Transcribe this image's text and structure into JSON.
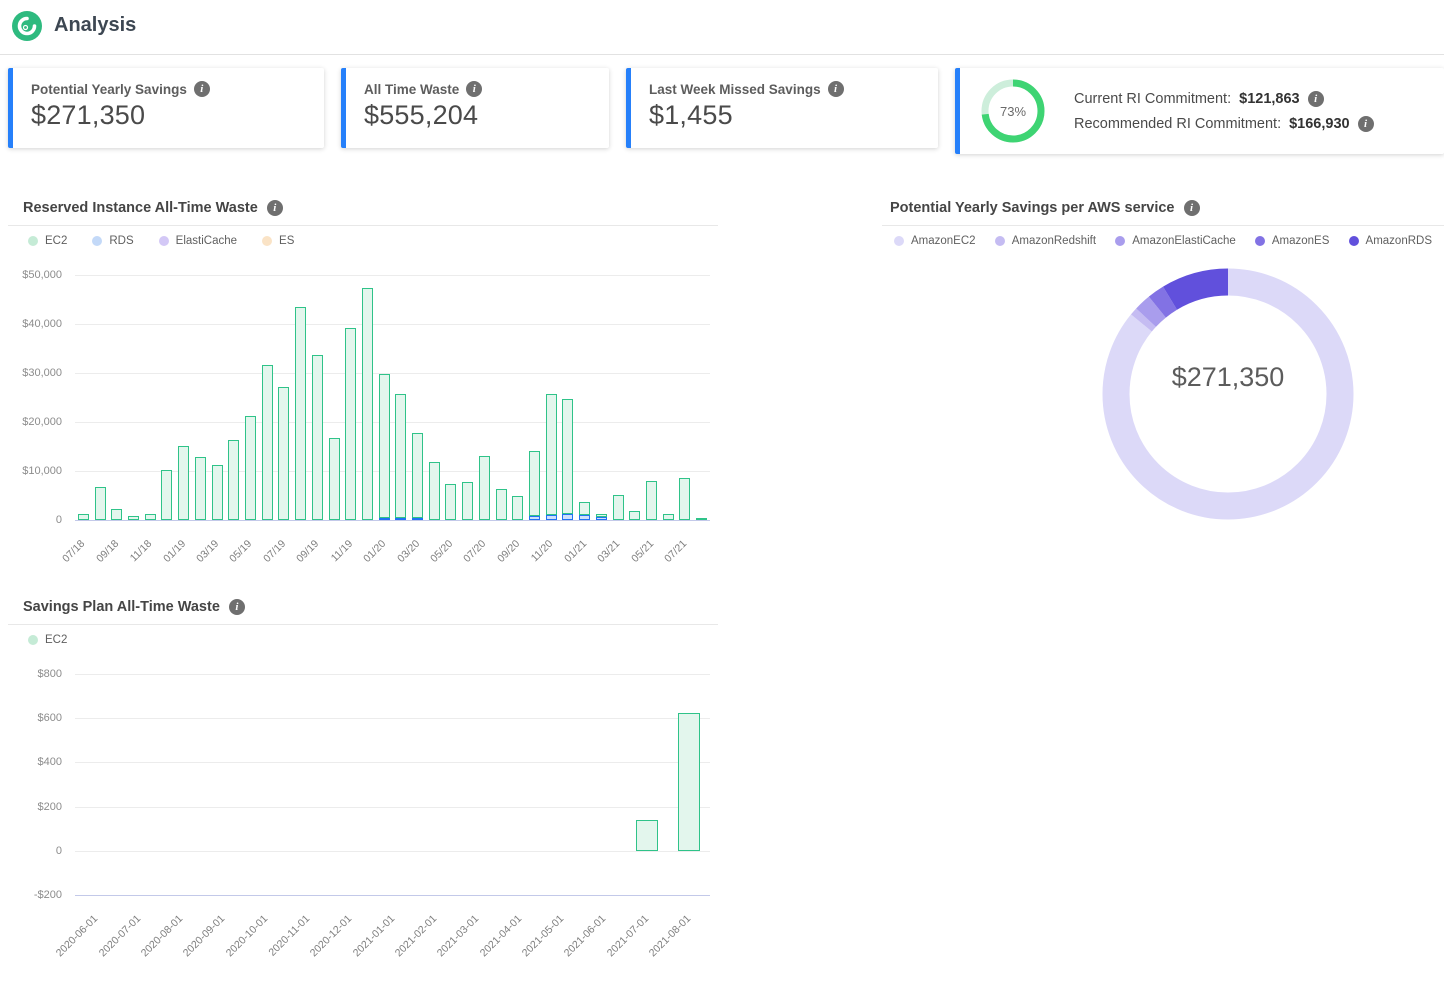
{
  "icons": {
    "info": "i"
  },
  "colors": {
    "accent_blue": "#2680fa",
    "ring_green": "#3ed473",
    "ring_track": "#cdeedb",
    "bar_green_border": "#2fc389",
    "bar_green_fill": "#e3f6ed",
    "bar_blue_border": "#2173f2",
    "bar_blue_fill": "#cfe0fb"
  },
  "header": {
    "title": "Analysis"
  },
  "cards": [
    {
      "label": "Potential Yearly Savings",
      "value": "$271,350"
    },
    {
      "label": "All Time Waste",
      "value": "$555,204"
    },
    {
      "label": "Last Week Missed Savings",
      "value": "$1,455"
    },
    {
      "percent": "73%",
      "percent_value": 73,
      "rows": [
        {
          "label": "Current RI Commitment:",
          "value": "$121,863"
        },
        {
          "label": "Recommended RI Commitment:",
          "value": "$166,930"
        }
      ]
    }
  ],
  "panels": {
    "ri": {
      "title": "Reserved Instance All-Time Waste"
    },
    "donut": {
      "title": "Potential Yearly Savings per AWS service"
    },
    "sp": {
      "title": "Savings Plan All-Time Waste"
    }
  },
  "chart_data": [
    {
      "type": "bar",
      "id": "ri",
      "title": "Reserved Instance All-Time Waste",
      "stacked": true,
      "ymax": 50000,
      "ymin": 0,
      "y_tick_labels": [
        "$50,000",
        "$40,000",
        "$30,000",
        "$20,000",
        "$10,000",
        "0"
      ],
      "y_tick_values": [
        50000,
        40000,
        30000,
        20000,
        10000,
        0
      ],
      "label_every": 2,
      "categories": [
        "07/18",
        "08/18",
        "09/18",
        "10/18",
        "11/18",
        "12/18",
        "01/19",
        "02/19",
        "03/19",
        "04/19",
        "05/19",
        "06/19",
        "07/19",
        "08/19",
        "09/19",
        "10/19",
        "11/19",
        "12/19",
        "01/20",
        "02/20",
        "03/20",
        "04/20",
        "05/20",
        "06/20",
        "07/20",
        "08/20",
        "09/20",
        "10/20",
        "11/20",
        "12/20",
        "01/21",
        "02/21",
        "03/21",
        "04/21",
        "05/21",
        "06/21",
        "07/21",
        "08/21"
      ],
      "legend": [
        {
          "label": "EC2",
          "color": "#c5ebd6"
        },
        {
          "label": "RDS",
          "color": "#c3d9f8"
        },
        {
          "label": "ElastiCache",
          "color": "#d3c8f6"
        },
        {
          "label": "ES",
          "color": "#fae3c6"
        }
      ],
      "series": [
        {
          "name": "EC2",
          "css": "ec2",
          "values": [
            1300,
            6800,
            2300,
            900,
            1300,
            10200,
            15100,
            12900,
            11200,
            16300,
            21200,
            31700,
            27200,
            43400,
            33600,
            16700,
            39200,
            47400,
            29400,
            25300,
            17200,
            11900,
            7300,
            7700,
            13000,
            6300,
            4800,
            13200,
            24800,
            23300,
            2700,
            600,
            5200,
            1800,
            7900,
            1200,
            8600,
            400
          ]
        },
        {
          "name": "RDS",
          "css": "rds",
          "values": [
            0,
            0,
            0,
            0,
            0,
            0,
            0,
            0,
            0,
            0,
            0,
            0,
            0,
            0,
            0,
            0,
            0,
            0,
            400,
            400,
            500,
            0,
            0,
            0,
            0,
            0,
            0,
            800,
            1000,
            1300,
            1000,
            600,
            0,
            0,
            0,
            0,
            0,
            0
          ]
        }
      ]
    },
    {
      "type": "pie",
      "id": "donut",
      "title": "Potential Yearly Savings per AWS service",
      "center_label": "$271,350",
      "segments": [
        {
          "label": "AmazonEC2",
          "pct": 85.9,
          "color": "#dcd9f8"
        },
        {
          "label": "AmazonRedshift",
          "pct": 1.0,
          "color": "#c5bcf2"
        },
        {
          "label": "AmazonElastiCache",
          "pct": 2.2,
          "color": "#a99ded"
        },
        {
          "label": "AmazonES",
          "pct": 2.2,
          "color": "#8272e4"
        },
        {
          "label": "AmazonRDS",
          "pct": 8.7,
          "color": "#6150dc"
        }
      ]
    },
    {
      "type": "bar",
      "id": "sp",
      "title": "Savings Plan All-Time Waste",
      "stacked": false,
      "ymax": 800,
      "ymin": -200,
      "y_tick_labels": [
        "$800",
        "$600",
        "$400",
        "$200",
        "0",
        "-$200"
      ],
      "y_tick_values": [
        800,
        600,
        400,
        200,
        0,
        -200
      ],
      "label_every": 1,
      "categories": [
        "2020-06-01",
        "2020-07-01",
        "2020-08-01",
        "2020-09-01",
        "2020-10-01",
        "2020-11-01",
        "2020-12-01",
        "2021-01-01",
        "2021-02-01",
        "2021-03-01",
        "2021-04-01",
        "2021-05-01",
        "2021-06-01",
        "2021-07-01",
        "2021-08-01"
      ],
      "legend": [
        {
          "label": "EC2",
          "color": "#c5ebd6"
        }
      ],
      "series": [
        {
          "name": "EC2",
          "css": "ec2",
          "values": [
            0,
            0,
            0,
            0,
            0,
            0,
            0,
            0,
            0,
            0,
            0,
            0,
            0,
            140,
            625
          ]
        }
      ]
    }
  ]
}
